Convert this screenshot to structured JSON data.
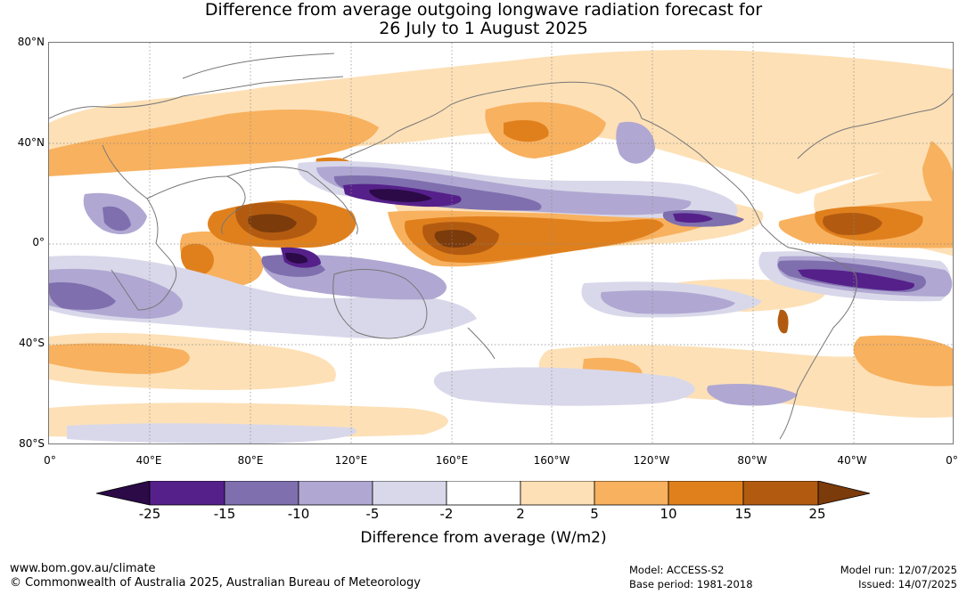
{
  "title": {
    "line1": "Difference from average outgoing longwave radiation forecast for",
    "line2": "26 July to 1 August 2025"
  },
  "map": {
    "lat_labels": [
      "80°N",
      "40°N",
      "0°",
      "40°S",
      "80°S"
    ],
    "lon_labels": [
      "0°",
      "40°E",
      "80°E",
      "120°E",
      "160°E",
      "160°W",
      "120°W",
      "80°W",
      "40°W",
      "0°"
    ]
  },
  "colorbar": {
    "title": "Difference from average (W/m2)",
    "ticks": [
      "-25",
      "-15",
      "-10",
      "-5",
      "-2",
      "2",
      "5",
      "10",
      "15",
      "25"
    ],
    "colors": [
      "#2b0a47",
      "#55208a",
      "#7f6fae",
      "#b0a8d2",
      "#d9d8ea",
      "#ffffff",
      "#fde0b6",
      "#f8b15e",
      "#e0801d",
      "#b25b10",
      "#7b3b0b"
    ]
  },
  "footer": {
    "url": "www.bom.gov.au/climate",
    "copyright": "© Commonwealth of Australia 2025, Australian Bureau of Meteorology",
    "model": "Model: ACCESS-S2",
    "base_period": "Base period: 1981-2018",
    "model_run": "Model run: 12/07/2025",
    "issued": "Issued: 14/07/2025"
  }
}
